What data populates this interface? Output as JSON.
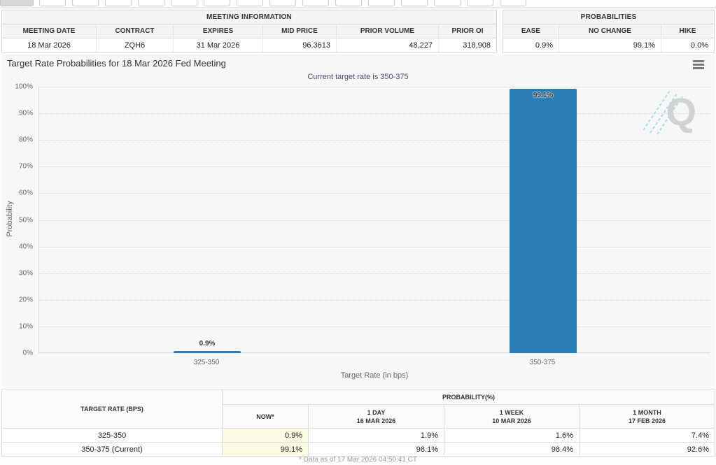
{
  "tabs_row": {
    "count": 16,
    "selected_index": 0
  },
  "meeting_information": {
    "title": "MEETING INFORMATION",
    "columns": [
      "MEETING DATE",
      "CONTRACT",
      "EXPIRES",
      "MID PRICE",
      "PRIOR VOLUME",
      "PRIOR OI"
    ],
    "values": [
      "18 Mar 2026",
      "ZQH6",
      "31 Mar 2026",
      "96.3613",
      "48,227",
      "318,908"
    ]
  },
  "probabilities_summary": {
    "title": "PROBABILITIES",
    "columns": [
      "EASE",
      "NO CHANGE",
      "HIKE"
    ],
    "values": [
      "0.9%",
      "99.1%",
      "0.0%"
    ]
  },
  "chart_data": {
    "type": "bar",
    "title": "Target Rate Probabilities for 18 Mar 2026 Fed Meeting",
    "subtitle": "Current target rate is 350-375",
    "categories": [
      "325-350",
      "350-375"
    ],
    "values": [
      0.9,
      99.1
    ],
    "value_labels": [
      "0.9%",
      "99.1%"
    ],
    "xlabel": "Target Rate (in bps)",
    "ylabel": "Probability",
    "ylim": [
      0,
      100
    ],
    "ytick_step": 10,
    "ytick_suffix": "%",
    "grid": "dotted horizontal",
    "legend": "none",
    "bar_color": "#2b7db5",
    "watermark": "Q"
  },
  "probability_table": {
    "corner_header": "TARGET RATE (BPS)",
    "group_header": "PROBABILITY(%)",
    "sub_headers": [
      {
        "line1": "NOW*",
        "line2": ""
      },
      {
        "line1": "1 DAY",
        "line2": "16 MAR 2026"
      },
      {
        "line1": "1 WEEK",
        "line2": "10 MAR 2026"
      },
      {
        "line1": "1 MONTH",
        "line2": "17 FEB 2026"
      }
    ],
    "rows": [
      {
        "target_rate": "325-350",
        "values": [
          "0.9%",
          "1.9%",
          "1.6%",
          "7.4%"
        ]
      },
      {
        "target_rate": "350-375 (Current)",
        "values": [
          "99.1%",
          "98.1%",
          "98.4%",
          "92.6%"
        ]
      }
    ]
  },
  "footer": {
    "note": "* Data as of 17 Mar 2026 04:50:41 CT"
  }
}
